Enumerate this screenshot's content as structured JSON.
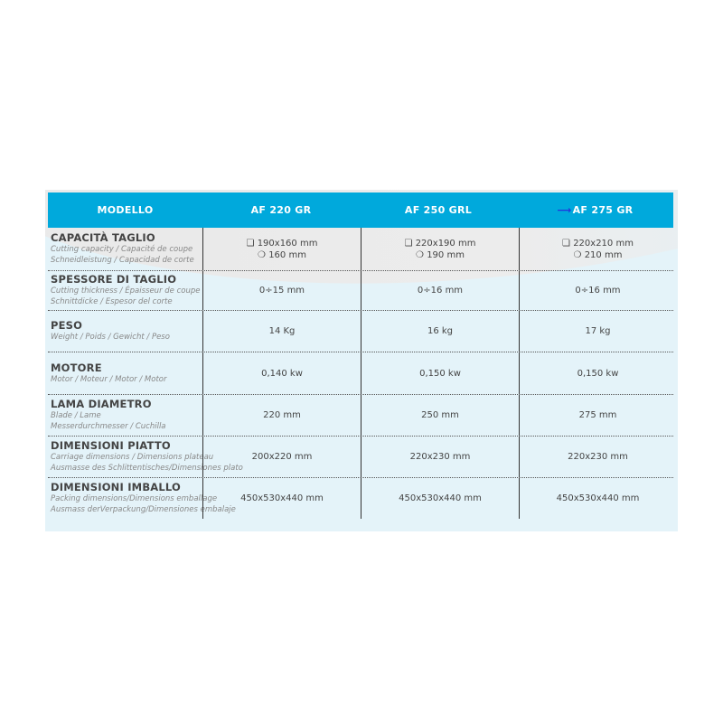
{
  "header": {
    "columns": [
      "MODELLO",
      "AF 220 GR",
      "AF 250 GRL",
      "AF 275 GR"
    ]
  },
  "colors": {
    "header_bg": "#00a9dc",
    "panel_bg": "#e4f3f9",
    "arrow": "#2233dd"
  },
  "rows": [
    {
      "title": "CAPACITÀ TAGLIO",
      "sub": [
        "Cutting capacity / Capacité de coupe",
        "Schneidleistung / Capacidad de corte"
      ],
      "values": [
        [
          "❏ 190x160 mm",
          "❍ 160 mm"
        ],
        [
          "❏ 220x190 mm",
          "❍ 190 mm"
        ],
        [
          "❏ 220x210 mm",
          "❍ 210 mm"
        ]
      ]
    },
    {
      "title": "SPESSORE DI TAGLIO",
      "sub": [
        "Cutting thickness / Épaisseur de coupe",
        "Schnittdicke / Espesor del corte"
      ],
      "values": [
        [
          "0÷15 mm"
        ],
        [
          "0÷16 mm"
        ],
        [
          "0÷16 mm"
        ]
      ]
    },
    {
      "title": "PESO",
      "sub": [
        "Weight / Poids / Gewicht / Peso"
      ],
      "values": [
        [
          "14 Kg"
        ],
        [
          "16 kg"
        ],
        [
          "17 kg"
        ]
      ]
    },
    {
      "title": "MOTORE",
      "sub": [
        "Motor / Moteur / Motor / Motor"
      ],
      "values": [
        [
          "0,140 kw"
        ],
        [
          "0,150 kw"
        ],
        [
          "0,150 kw"
        ]
      ]
    },
    {
      "title": "LAMA DIAMETRO",
      "sub": [
        "Blade / Lame",
        "Messerdurchmesser / Cuchilla"
      ],
      "values": [
        [
          "220 mm"
        ],
        [
          "250 mm"
        ],
        [
          "275 mm"
        ]
      ]
    },
    {
      "title": "DIMENSIONI PIATTO",
      "sub": [
        "Carriage dimensions / Dimensions plateau",
        "Ausmasse des Schlittentisches/Dimensiones plato"
      ],
      "values": [
        [
          "200x220 mm"
        ],
        [
          "220x230 mm"
        ],
        [
          "220x230 mm"
        ]
      ]
    },
    {
      "title": "DIMENSIONI IMBALLO",
      "sub": [
        "Packing dimensions/Dimensions emballage",
        "Ausmass derVerpackung/Dimensiones embalaje"
      ],
      "values": [
        [
          "450x530x440 mm"
        ],
        [
          "450x530x440 mm"
        ],
        [
          "450x530x440 mm"
        ]
      ]
    }
  ]
}
